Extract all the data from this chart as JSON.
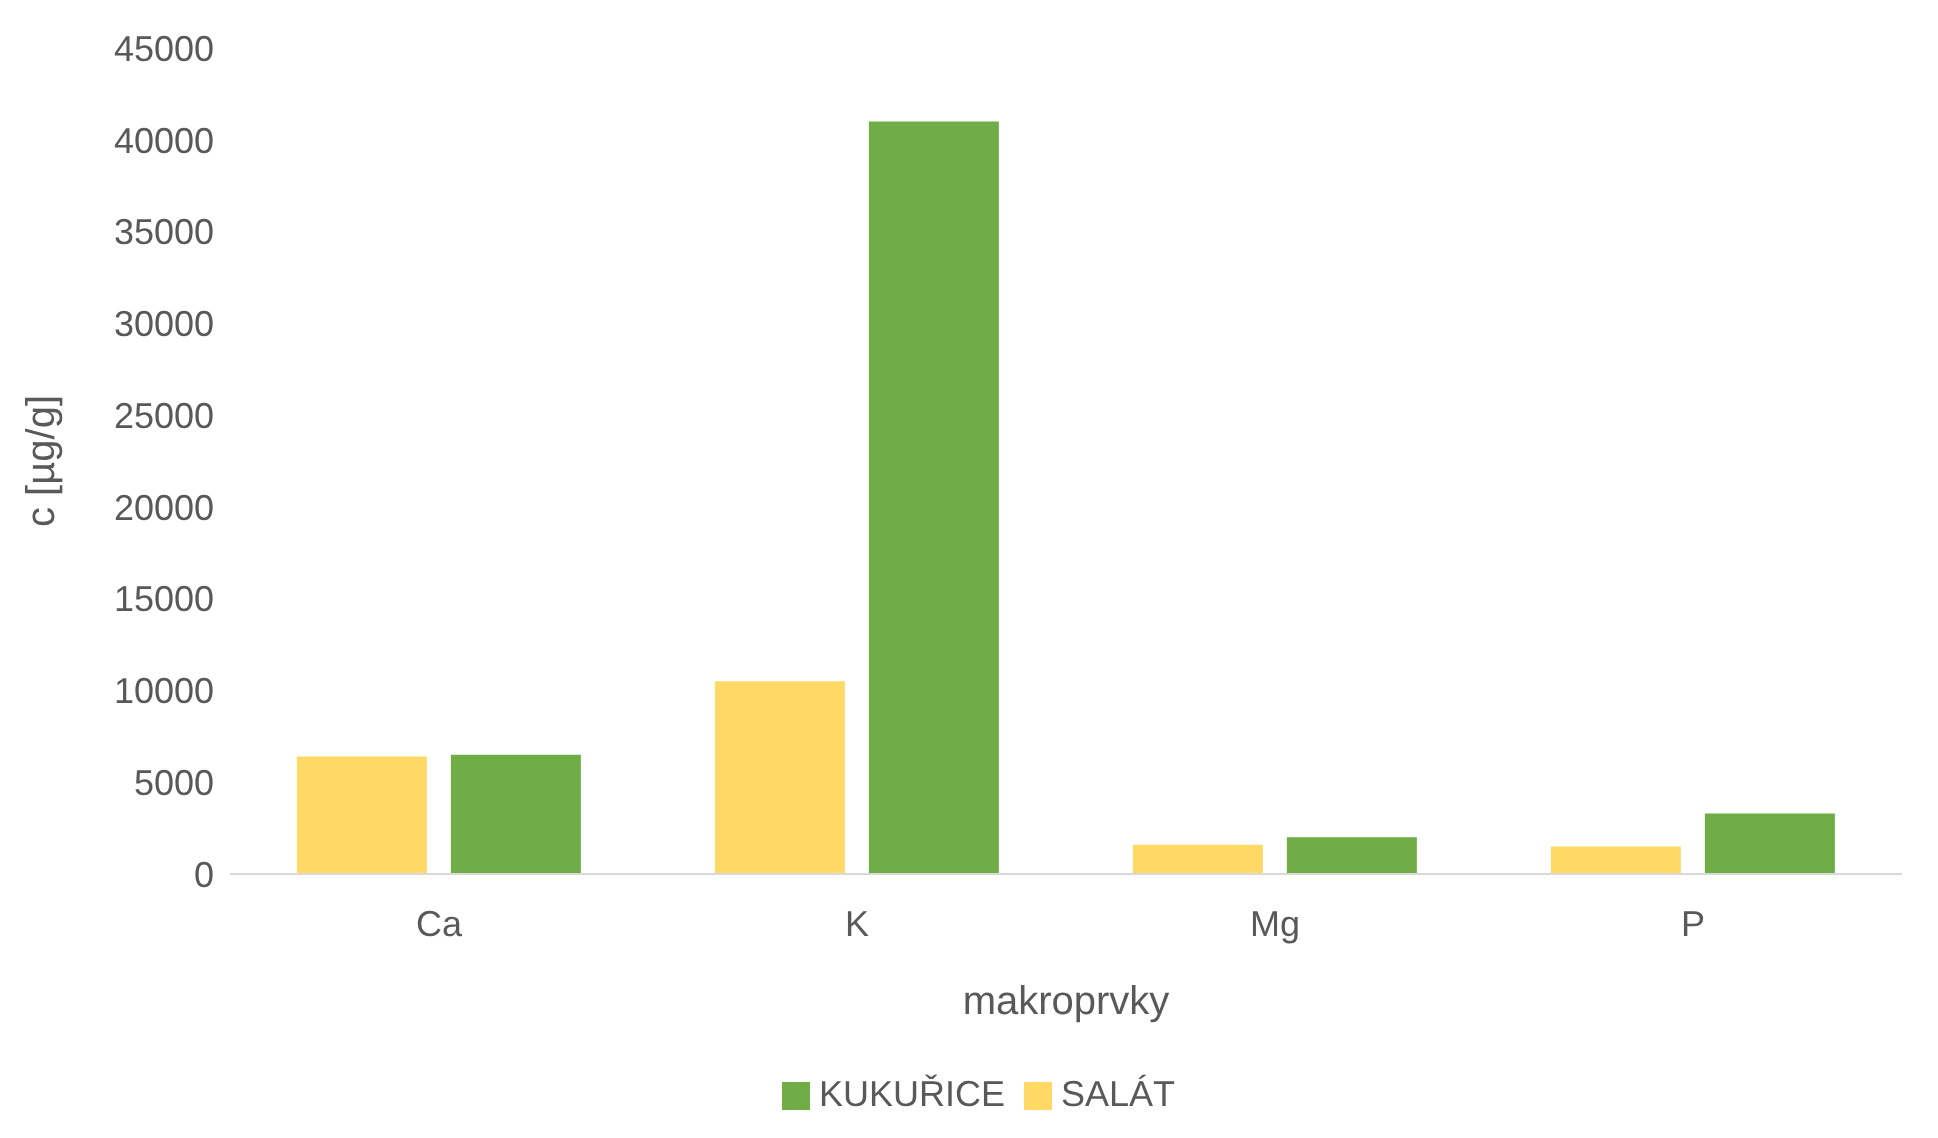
{
  "chart_data": {
    "type": "bar",
    "xlabel": "makroprvky",
    "ylabel": "c [µg/g]",
    "categories": [
      "Ca",
      "K",
      "Mg",
      "P"
    ],
    "series": [
      {
        "name": "SALÁT",
        "color": "#ffd966",
        "values": [
          6400,
          10500,
          1600,
          1500
        ]
      },
      {
        "name": "KUKUŘICE",
        "color": "#70ad47",
        "values": [
          6500,
          41000,
          2000,
          3300
        ]
      }
    ],
    "ylim": [
      0,
      45000
    ],
    "yticks": [
      0,
      5000,
      10000,
      15000,
      20000,
      25000,
      30000,
      35000,
      40000,
      45000
    ],
    "grid": false,
    "legend": "bottom"
  }
}
